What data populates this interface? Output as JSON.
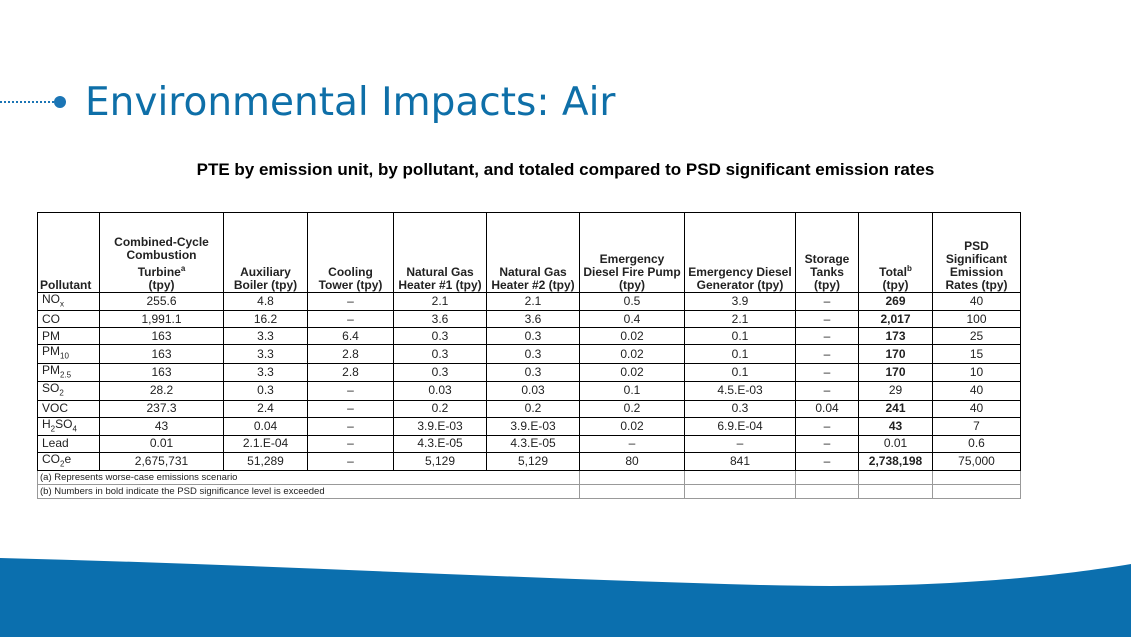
{
  "slide": {
    "title": "Environmental Impacts: Air"
  },
  "table_title": "PTE by emission unit, by pollutant, and totaled compared to PSD significant emission rates",
  "columns": [
    {
      "label": "Pollutant"
    },
    {
      "label": "Combined-Cycle Combustion Turbine",
      "sup": "a",
      "unit": "(tpy)"
    },
    {
      "label": "Auxiliary Boiler (tpy)"
    },
    {
      "label": "Cooling Tower (tpy)"
    },
    {
      "label": "Natural Gas Heater #1 (tpy)"
    },
    {
      "label": "Natural Gas Heater #2 (tpy)"
    },
    {
      "label": "Emergency Diesel Fire Pump (tpy)"
    },
    {
      "label": "Emergency Diesel Generator (tpy)"
    },
    {
      "label": "Storage Tanks (tpy)"
    },
    {
      "label": "Total",
      "sup": "b",
      "unit": "(tpy)"
    },
    {
      "label": "PSD Significant Emission Rates (tpy)"
    }
  ],
  "rows": [
    {
      "pollutant": "NOx",
      "base": "NO",
      "sub": "x",
      "cells": [
        "255.6",
        "4.8",
        "–",
        "2.1",
        "2.1",
        "0.5",
        "3.9",
        "–",
        "269",
        "40"
      ]
    },
    {
      "pollutant": "CO",
      "base": "CO",
      "sub": "",
      "cells": [
        "1,991.1",
        "16.2",
        "–",
        "3.6",
        "3.6",
        "0.4",
        "2.1",
        "–",
        "2,017",
        "100"
      ]
    },
    {
      "pollutant": "PM",
      "base": "PM",
      "sub": "",
      "cells": [
        "163",
        "3.3",
        "6.4",
        "0.3",
        "0.3",
        "0.02",
        "0.1",
        "–",
        "173",
        "25"
      ]
    },
    {
      "pollutant": "PM10",
      "base": "PM",
      "sub": "10",
      "cells": [
        "163",
        "3.3",
        "2.8",
        "0.3",
        "0.3",
        "0.02",
        "0.1",
        "–",
        "170",
        "15"
      ]
    },
    {
      "pollutant": "PM2.5",
      "base": "PM",
      "sub": "2.5",
      "cells": [
        "163",
        "3.3",
        "2.8",
        "0.3",
        "0.3",
        "0.02",
        "0.1",
        "–",
        "170",
        "10"
      ]
    },
    {
      "pollutant": "SO2",
      "base": "SO",
      "sub": "2",
      "cells": [
        "28.2",
        "0.3",
        "–",
        "0.03",
        "0.03",
        "0.1",
        "4.5.E-03",
        "–",
        "29",
        "40"
      ]
    },
    {
      "pollutant": "VOC",
      "base": "VOC",
      "sub": "",
      "cells": [
        "237.3",
        "2.4",
        "–",
        "0.2",
        "0.2",
        "0.2",
        "0.3",
        "0.04",
        "241",
        "40"
      ]
    },
    {
      "pollutant": "H2SO4",
      "base": "H",
      "sub": "2",
      "post": "SO",
      "sub2": "4",
      "cells": [
        "43",
        "0.04",
        "–",
        "3.9.E-03",
        "3.9.E-03",
        "0.02",
        "6.9.E-04",
        "–",
        "43",
        "7"
      ]
    },
    {
      "pollutant": "Lead",
      "base": "Lead",
      "sub": "",
      "cells": [
        "0.01",
        "2.1.E-04",
        "–",
        "4.3.E-05",
        "4.3.E-05",
        "–",
        "–",
        "–",
        "0.01",
        "0.6"
      ]
    },
    {
      "pollutant": "CO2e",
      "base": "CO",
      "sub": "2",
      "post": "e",
      "cells": [
        "2,675,731",
        "51,289",
        "–",
        "5,129",
        "5,129",
        "80",
        "841",
        "–",
        "2,738,198",
        "75,000"
      ]
    }
  ],
  "bold_totals": [
    true,
    true,
    true,
    true,
    true,
    false,
    true,
    true,
    false,
    true
  ],
  "notes": [
    "(a) Represents worse-case emissions scenario",
    "(b) Numbers in bold indicate the PSD significance level is exceeded"
  ],
  "colors": {
    "accent": "#1b75b5",
    "title": "#0e6fa8",
    "wave": "#0b6fae"
  }
}
